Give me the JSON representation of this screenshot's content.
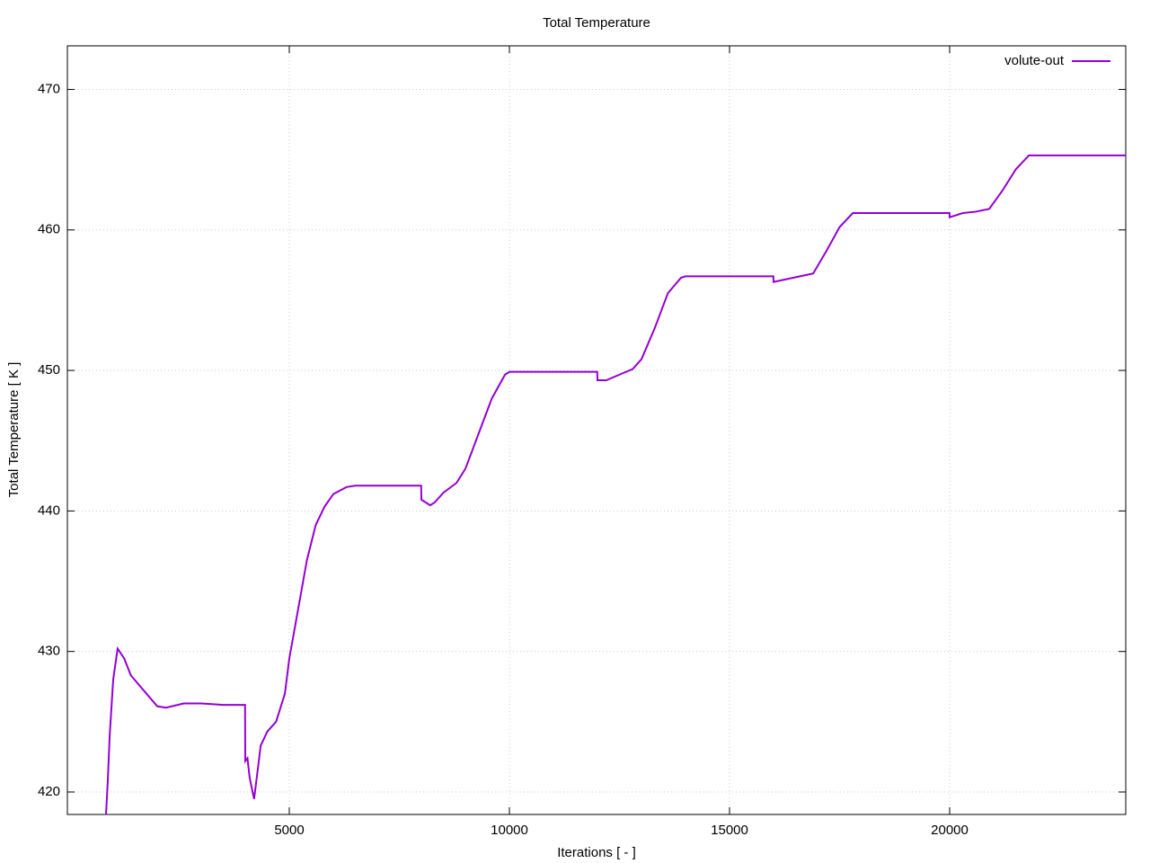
{
  "chart_data": {
    "type": "line",
    "title": "Total Temperature",
    "x_label": "Iterations [ - ]",
    "y_label": "Total Temperature [ K ]",
    "x": [
      837,
      880,
      920,
      1000,
      1100,
      1250,
      1400,
      1700,
      2000,
      2200,
      2600,
      3000,
      3500,
      3995,
      4000,
      4050,
      4100,
      4200,
      4300,
      4350,
      4500,
      4700,
      4900,
      5000,
      5200,
      5400,
      5600,
      5800,
      6000,
      6300,
      6500,
      7995,
      8000,
      8100,
      8200,
      8300,
      8500,
      8800,
      9000,
      9300,
      9600,
      9900,
      10000,
      11995,
      12000,
      12200,
      12500,
      12800,
      13000,
      13300,
      13600,
      13900,
      14000,
      15995,
      16000,
      16300,
      16600,
      16900,
      17200,
      17500,
      17800,
      19995,
      20000,
      20300,
      20600,
      20900,
      21200,
      21500,
      21800,
      24000
    ],
    "series": [
      {
        "name": "volute-out",
        "color": "#9400d3",
        "values": [
          418.4,
          421,
          424,
          428,
          430.2,
          429.5,
          428.3,
          427.2,
          426.1,
          426,
          426.3,
          426.3,
          426.2,
          426.2,
          422.2,
          422.4,
          421,
          419.5,
          422,
          423.3,
          424.3,
          425,
          427,
          429.5,
          433,
          436.5,
          439,
          440.3,
          441.2,
          441.7,
          441.8,
          441.8,
          440.8,
          440.6,
          440.4,
          440.6,
          441.3,
          442,
          443,
          445.5,
          448,
          449.7,
          449.9,
          449.9,
          449.3,
          449.3,
          449.7,
          450.1,
          450.8,
          453,
          455.5,
          456.6,
          456.7,
          456.7,
          456.3,
          456.5,
          456.7,
          456.9,
          458.5,
          460.2,
          461.2,
          461.2,
          460.9,
          461.2,
          461.3,
          461.5,
          462.8,
          464.3,
          465.3,
          465.3
        ]
      }
    ],
    "xlim": [
      -41,
      24000
    ],
    "ylim": [
      418.4,
      473.1
    ],
    "xticks": [
      5000,
      10000,
      15000,
      20000
    ],
    "yticks": [
      420,
      430,
      440,
      450,
      460,
      470
    ],
    "grid": true,
    "legend": "top-right"
  }
}
